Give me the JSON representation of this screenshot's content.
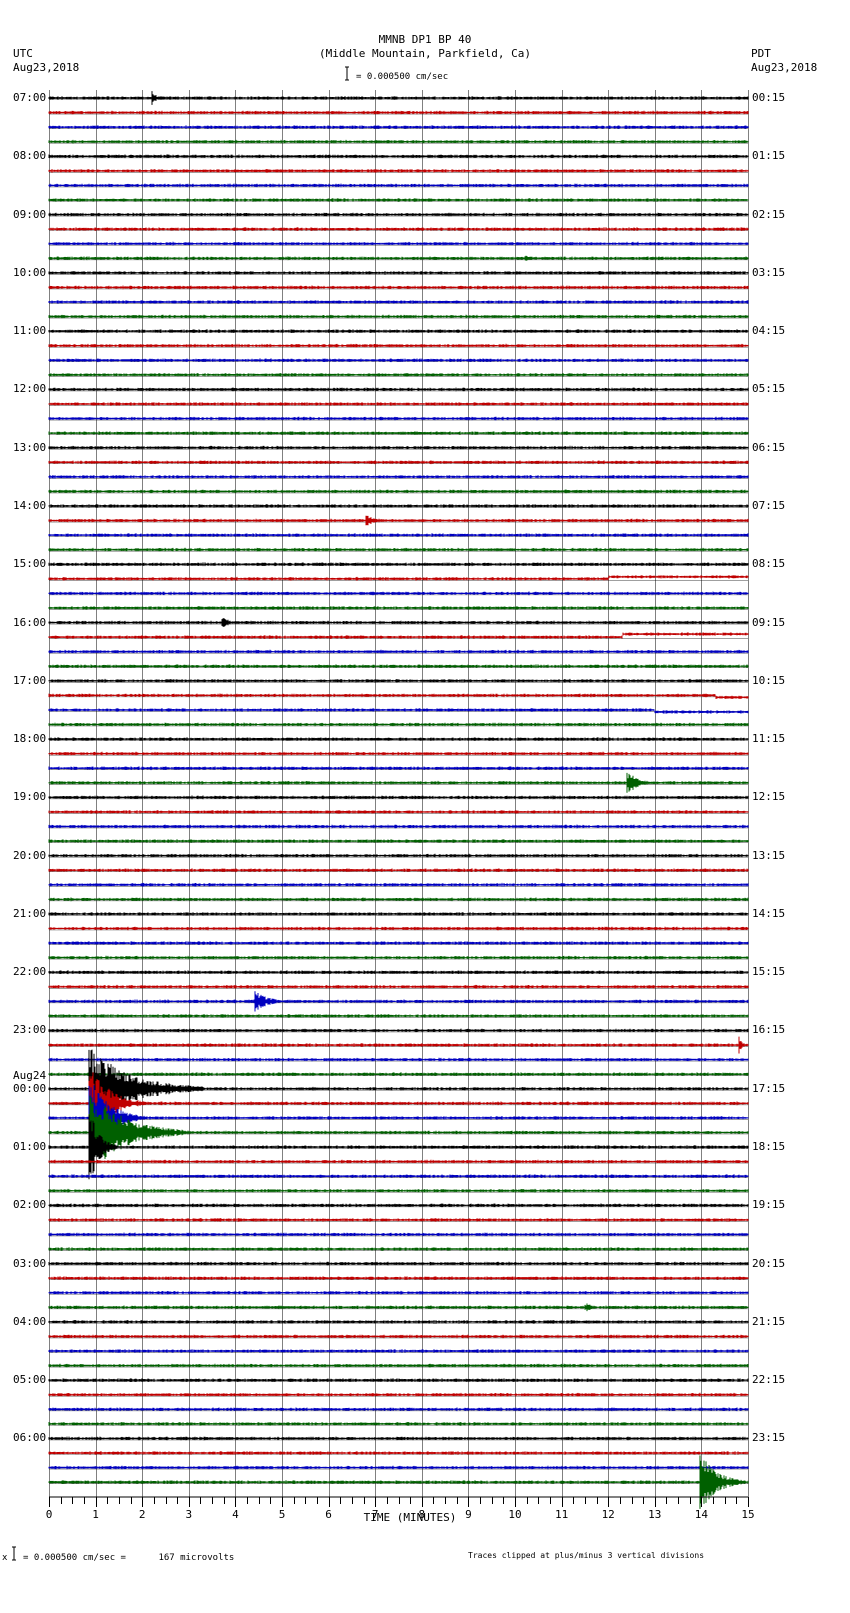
{
  "header": {
    "title": "MMNB DP1 BP 40",
    "subtitle": "(Middle Mountain, Parkfield, Ca)",
    "left_tz": "UTC",
    "left_date": "Aug23,2018",
    "right_tz": "PDT",
    "right_date": "Aug23,2018",
    "scale_label": "= 0.000500 cm/sec"
  },
  "footer": {
    "scale_text": "= 0.000500 cm/sec =      167 microvolts",
    "scale_prefix": "x",
    "clip_note": "Traces clipped at plus/minus 3 vertical divisions"
  },
  "colors": {
    "trace_cycle": [
      "#000000",
      "#c00000",
      "#0000c0",
      "#006000"
    ],
    "grid": "#808080"
  },
  "chart_data": {
    "type": "line",
    "title": "MMNB DP1 BP 40 (Middle Mountain, Parkfield, Ca)",
    "xlabel": "TIME (MINUTES)",
    "ylabel": "",
    "xlim": [
      0,
      15
    ],
    "x_ticks": [
      0,
      1,
      2,
      3,
      4,
      5,
      6,
      7,
      8,
      9,
      10,
      11,
      12,
      13,
      14,
      15
    ],
    "grid": true,
    "rows_per_hour": 4,
    "minutes_per_row": 15,
    "num_rows": 96,
    "left_labels": [
      {
        "row": 0,
        "text": "07:00"
      },
      {
        "row": 4,
        "text": "08:00"
      },
      {
        "row": 8,
        "text": "09:00"
      },
      {
        "row": 12,
        "text": "10:00"
      },
      {
        "row": 16,
        "text": "11:00"
      },
      {
        "row": 20,
        "text": "12:00"
      },
      {
        "row": 24,
        "text": "13:00"
      },
      {
        "row": 28,
        "text": "14:00"
      },
      {
        "row": 32,
        "text": "15:00"
      },
      {
        "row": 36,
        "text": "16:00"
      },
      {
        "row": 40,
        "text": "17:00"
      },
      {
        "row": 44,
        "text": "18:00"
      },
      {
        "row": 48,
        "text": "19:00"
      },
      {
        "row": 52,
        "text": "20:00"
      },
      {
        "row": 56,
        "text": "21:00"
      },
      {
        "row": 60,
        "text": "22:00"
      },
      {
        "row": 64,
        "text": "23:00"
      },
      {
        "row": 68,
        "text": "00:00",
        "date": "Aug24"
      },
      {
        "row": 72,
        "text": "01:00"
      },
      {
        "row": 76,
        "text": "02:00"
      },
      {
        "row": 80,
        "text": "03:00"
      },
      {
        "row": 84,
        "text": "04:00"
      },
      {
        "row": 88,
        "text": "05:00"
      },
      {
        "row": 92,
        "text": "06:00"
      }
    ],
    "right_labels": [
      {
        "row": 0,
        "text": "00:15"
      },
      {
        "row": 4,
        "text": "01:15"
      },
      {
        "row": 8,
        "text": "02:15"
      },
      {
        "row": 12,
        "text": "03:15"
      },
      {
        "row": 16,
        "text": "04:15"
      },
      {
        "row": 20,
        "text": "05:15"
      },
      {
        "row": 24,
        "text": "06:15"
      },
      {
        "row": 28,
        "text": "07:15"
      },
      {
        "row": 32,
        "text": "08:15"
      },
      {
        "row": 36,
        "text": "09:15"
      },
      {
        "row": 40,
        "text": "10:15"
      },
      {
        "row": 44,
        "text": "11:15"
      },
      {
        "row": 48,
        "text": "12:15"
      },
      {
        "row": 52,
        "text": "13:15"
      },
      {
        "row": 56,
        "text": "14:15"
      },
      {
        "row": 60,
        "text": "15:15"
      },
      {
        "row": 64,
        "text": "16:15"
      },
      {
        "row": 68,
        "text": "17:15"
      },
      {
        "row": 72,
        "text": "18:15"
      },
      {
        "row": 76,
        "text": "19:15"
      },
      {
        "row": 80,
        "text": "20:15"
      },
      {
        "row": 84,
        "text": "21:15"
      },
      {
        "row": 88,
        "text": "22:15"
      },
      {
        "row": 92,
        "text": "23:15"
      }
    ],
    "events": [
      {
        "row": 0,
        "minute": 2.2,
        "amp": 8,
        "dur": 0.3
      },
      {
        "row": 11,
        "minute": 10.2,
        "amp": 3,
        "dur": 0.8
      },
      {
        "row": 17,
        "minute": 10.4,
        "amp": 2,
        "dur": 0.6
      },
      {
        "row": 29,
        "minute": 6.8,
        "amp": 6,
        "dur": 0.6
      },
      {
        "row": 36,
        "minute": 3.7,
        "amp": 6,
        "dur": 0.6
      },
      {
        "row": 47,
        "minute": 12.4,
        "amp": 12,
        "dur": 0.8
      },
      {
        "row": 62,
        "minute": 4.4,
        "amp": 12,
        "dur": 0.8
      },
      {
        "row": 65,
        "minute": 14.8,
        "amp": 10,
        "dur": 0.2
      },
      {
        "row": 68,
        "minute": 0.85,
        "amp": 44,
        "dur": 2.5,
        "clipped": true
      },
      {
        "row": 69,
        "minute": 0.85,
        "amp": 44,
        "dur": 1.2,
        "clipped": true
      },
      {
        "row": 70,
        "minute": 0.85,
        "amp": 44,
        "dur": 1.2,
        "clipped": true
      },
      {
        "row": 71,
        "minute": 0.85,
        "amp": 44,
        "dur": 2.2,
        "clipped": true
      },
      {
        "row": 72,
        "minute": 0.85,
        "amp": 44,
        "dur": 0.6,
        "clipped": true
      },
      {
        "row": 83,
        "minute": 11.5,
        "amp": 5,
        "dur": 0.6
      },
      {
        "row": 95,
        "minute": 13.95,
        "amp": 34,
        "dur": 1.0,
        "clipped": true
      }
    ],
    "drift_rows": [
      {
        "row": 33,
        "from_minute": 12.0,
        "offset": -2
      },
      {
        "row": 37,
        "from_minute": 12.3,
        "offset": -3
      },
      {
        "row": 41,
        "from_minute": 14.3,
        "offset": 2
      },
      {
        "row": 42,
        "from_minute": 13.0,
        "offset": 2
      }
    ]
  },
  "axis": {
    "xlabel": "TIME (MINUTES)"
  }
}
